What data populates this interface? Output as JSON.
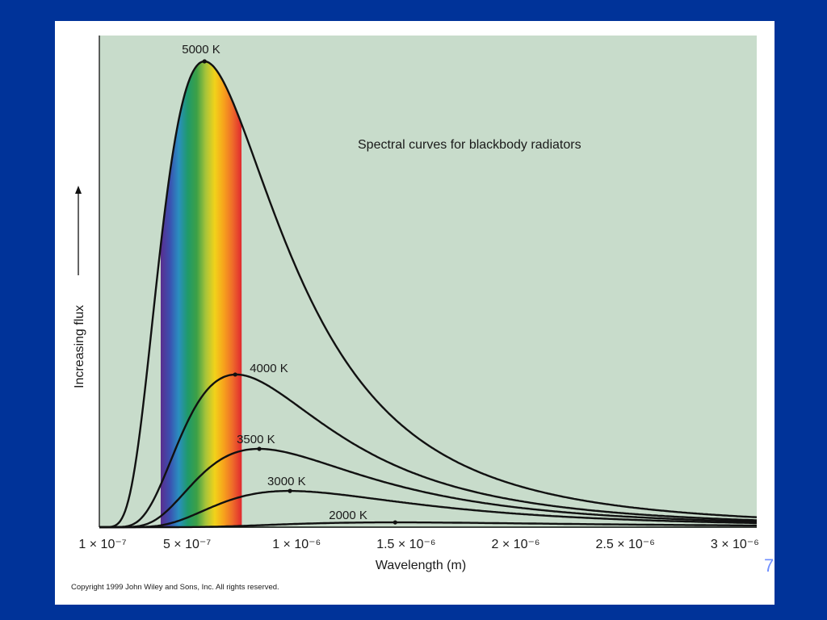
{
  "slide": {
    "number": "7",
    "copyright": "Copyright 1999 John Wiley and Sons, Inc. All rights reserved."
  },
  "colors": {
    "background": "#003399",
    "plot_area": "#c8dccb",
    "curve": "#111111",
    "spectrum": [
      "#5a2d8f",
      "#3b4fb0",
      "#2a8fc0",
      "#1f9a6a",
      "#3da046",
      "#a7c43a",
      "#f2d21a",
      "#f7a21c",
      "#ee6a2a",
      "#e0282f"
    ]
  },
  "chart_data": {
    "type": "line",
    "title": "Spectral curves for blackbody radiators",
    "xlabel": "Wavelength (m)",
    "ylabel": "Increasing flux",
    "xlim": [
      1e-07,
      3.1e-06
    ],
    "x_ticks": [
      {
        "value": 1e-07,
        "label": "1 × 10⁻⁷"
      },
      {
        "value": 5e-07,
        "label": "5 × 10⁻⁷"
      },
      {
        "value": 1e-06,
        "label": "1 × 10⁻⁶"
      },
      {
        "value": 1.5e-06,
        "label": "1.5 × 10⁻⁶"
      },
      {
        "value": 2e-06,
        "label": "2 × 10⁻⁶"
      },
      {
        "value": 2.5e-06,
        "label": "2.5 × 10⁻⁶"
      },
      {
        "value": 3e-06,
        "label": "3 × 10⁻⁶"
      }
    ],
    "y_ticks": "none",
    "grid": false,
    "visible_band": [
      3.8e-07,
      7.5e-07
    ],
    "series": [
      {
        "name": "5000 K",
        "temperature": 5000,
        "peak_wavelength": 5.8e-07
      },
      {
        "name": "4000 K",
        "temperature": 4000,
        "peak_wavelength": 7.2e-07
      },
      {
        "name": "3500 K",
        "temperature": 3500,
        "peak_wavelength": 8.3e-07
      },
      {
        "name": "3000 K",
        "temperature": 3000,
        "peak_wavelength": 9.7e-07
      },
      {
        "name": "2000 K",
        "temperature": 2000,
        "peak_wavelength": 1.45e-06
      }
    ]
  }
}
